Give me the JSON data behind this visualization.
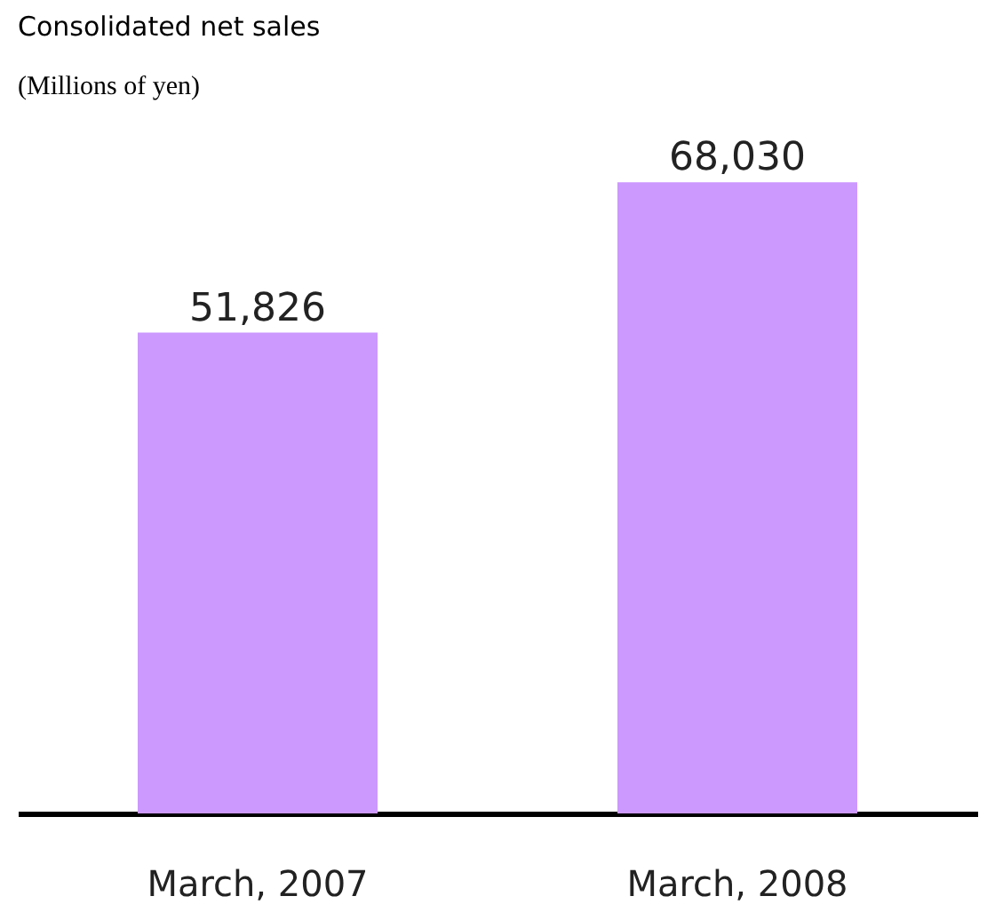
{
  "chart_data": {
    "type": "bar",
    "title": "Consolidated net sales",
    "subtitle": "(Millions of yen)",
    "categories": [
      "March, 2007",
      "March, 2008"
    ],
    "values": [
      51826,
      68030
    ],
    "value_labels": [
      "51,826",
      "68,030"
    ],
    "color": "#cc99ff",
    "grid": false
  }
}
